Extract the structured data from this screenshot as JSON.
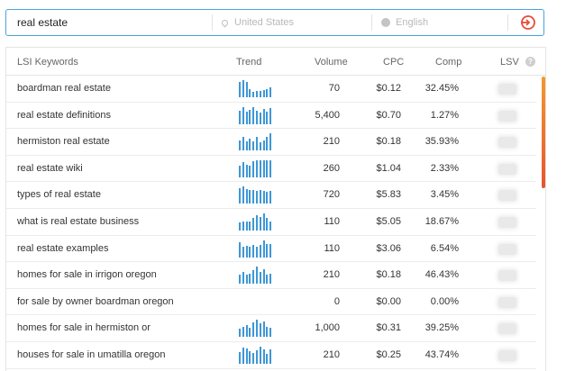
{
  "search": {
    "query": "real estate",
    "location_placeholder": "United States",
    "language_placeholder": "English"
  },
  "table": {
    "headers": {
      "keyword": "LSI Keywords",
      "trend": "Trend",
      "volume": "Volume",
      "cpc": "CPC",
      "comp": "Comp",
      "lsv": "LSV"
    },
    "info_glyph": "?",
    "rows": [
      {
        "keyword": "boardman real estate",
        "volume": "70",
        "cpc": "$0.12",
        "comp": "32.45%",
        "trend": [
          0.9,
          1.0,
          0.9,
          0.45,
          0.3,
          0.35,
          0.35,
          0.4,
          0.45,
          0.6
        ]
      },
      {
        "keyword": "real estate definitions",
        "volume": "5,400",
        "cpc": "$0.70",
        "comp": "1.27%",
        "trend": [
          0.8,
          1.0,
          0.75,
          0.85,
          1.0,
          0.8,
          0.7,
          0.9,
          0.75,
          0.95
        ]
      },
      {
        "keyword": "hermiston real estate",
        "volume": "210",
        "cpc": "$0.18",
        "comp": "35.93%",
        "trend": [
          0.6,
          0.8,
          0.5,
          0.7,
          0.55,
          0.8,
          0.45,
          0.6,
          0.8,
          1.0
        ]
      },
      {
        "keyword": "real estate wiki",
        "volume": "260",
        "cpc": "$1.04",
        "comp": "2.33%",
        "trend": [
          0.7,
          0.9,
          0.75,
          0.7,
          0.95,
          1.0,
          1.0,
          1.0,
          1.0,
          1.0
        ]
      },
      {
        "keyword": "types of real estate",
        "volume": "720",
        "cpc": "$5.83",
        "comp": "3.45%",
        "trend": [
          0.9,
          1.0,
          0.85,
          0.8,
          0.8,
          0.75,
          0.8,
          0.75,
          0.7,
          0.75
        ]
      },
      {
        "keyword": "what is real estate business",
        "volume": "110",
        "cpc": "$5.05",
        "comp": "18.67%",
        "trend": [
          0.45,
          0.5,
          0.55,
          0.5,
          0.75,
          0.9,
          0.8,
          1.0,
          0.75,
          0.5
        ]
      },
      {
        "keyword": "real estate examples",
        "volume": "110",
        "cpc": "$3.06",
        "comp": "6.54%",
        "trend": [
          0.9,
          0.65,
          0.7,
          0.65,
          0.75,
          0.65,
          0.75,
          1.0,
          0.8,
          0.8
        ]
      },
      {
        "keyword": "homes for sale in irrigon oregon",
        "volume": "210",
        "cpc": "$0.18",
        "comp": "46.43%",
        "trend": [
          0.55,
          0.7,
          0.5,
          0.6,
          0.8,
          1.0,
          0.7,
          0.85,
          0.55,
          0.6
        ]
      },
      {
        "keyword": "for sale by owner boardman oregon",
        "volume": "0",
        "cpc": "$0.00",
        "comp": "0.00%",
        "trend": []
      },
      {
        "keyword": "homes for sale in hermiston or",
        "volume": "1,000",
        "cpc": "$0.31",
        "comp": "39.25%",
        "trend": [
          0.45,
          0.6,
          0.7,
          0.55,
          0.85,
          1.0,
          0.8,
          0.9,
          0.6,
          0.55
        ]
      },
      {
        "keyword": "houses for sale in umatilla oregon",
        "volume": "210",
        "cpc": "$0.25",
        "comp": "43.74%",
        "trend": [
          0.7,
          0.95,
          0.9,
          0.75,
          0.65,
          0.8,
          1.0,
          0.85,
          0.6,
          0.85
        ]
      }
    ]
  },
  "colors": {
    "accent": "#3e97d6",
    "go_button": "#e84b3a",
    "scroll_top": "#f39a2b",
    "scroll_bottom": "#e8532e"
  }
}
